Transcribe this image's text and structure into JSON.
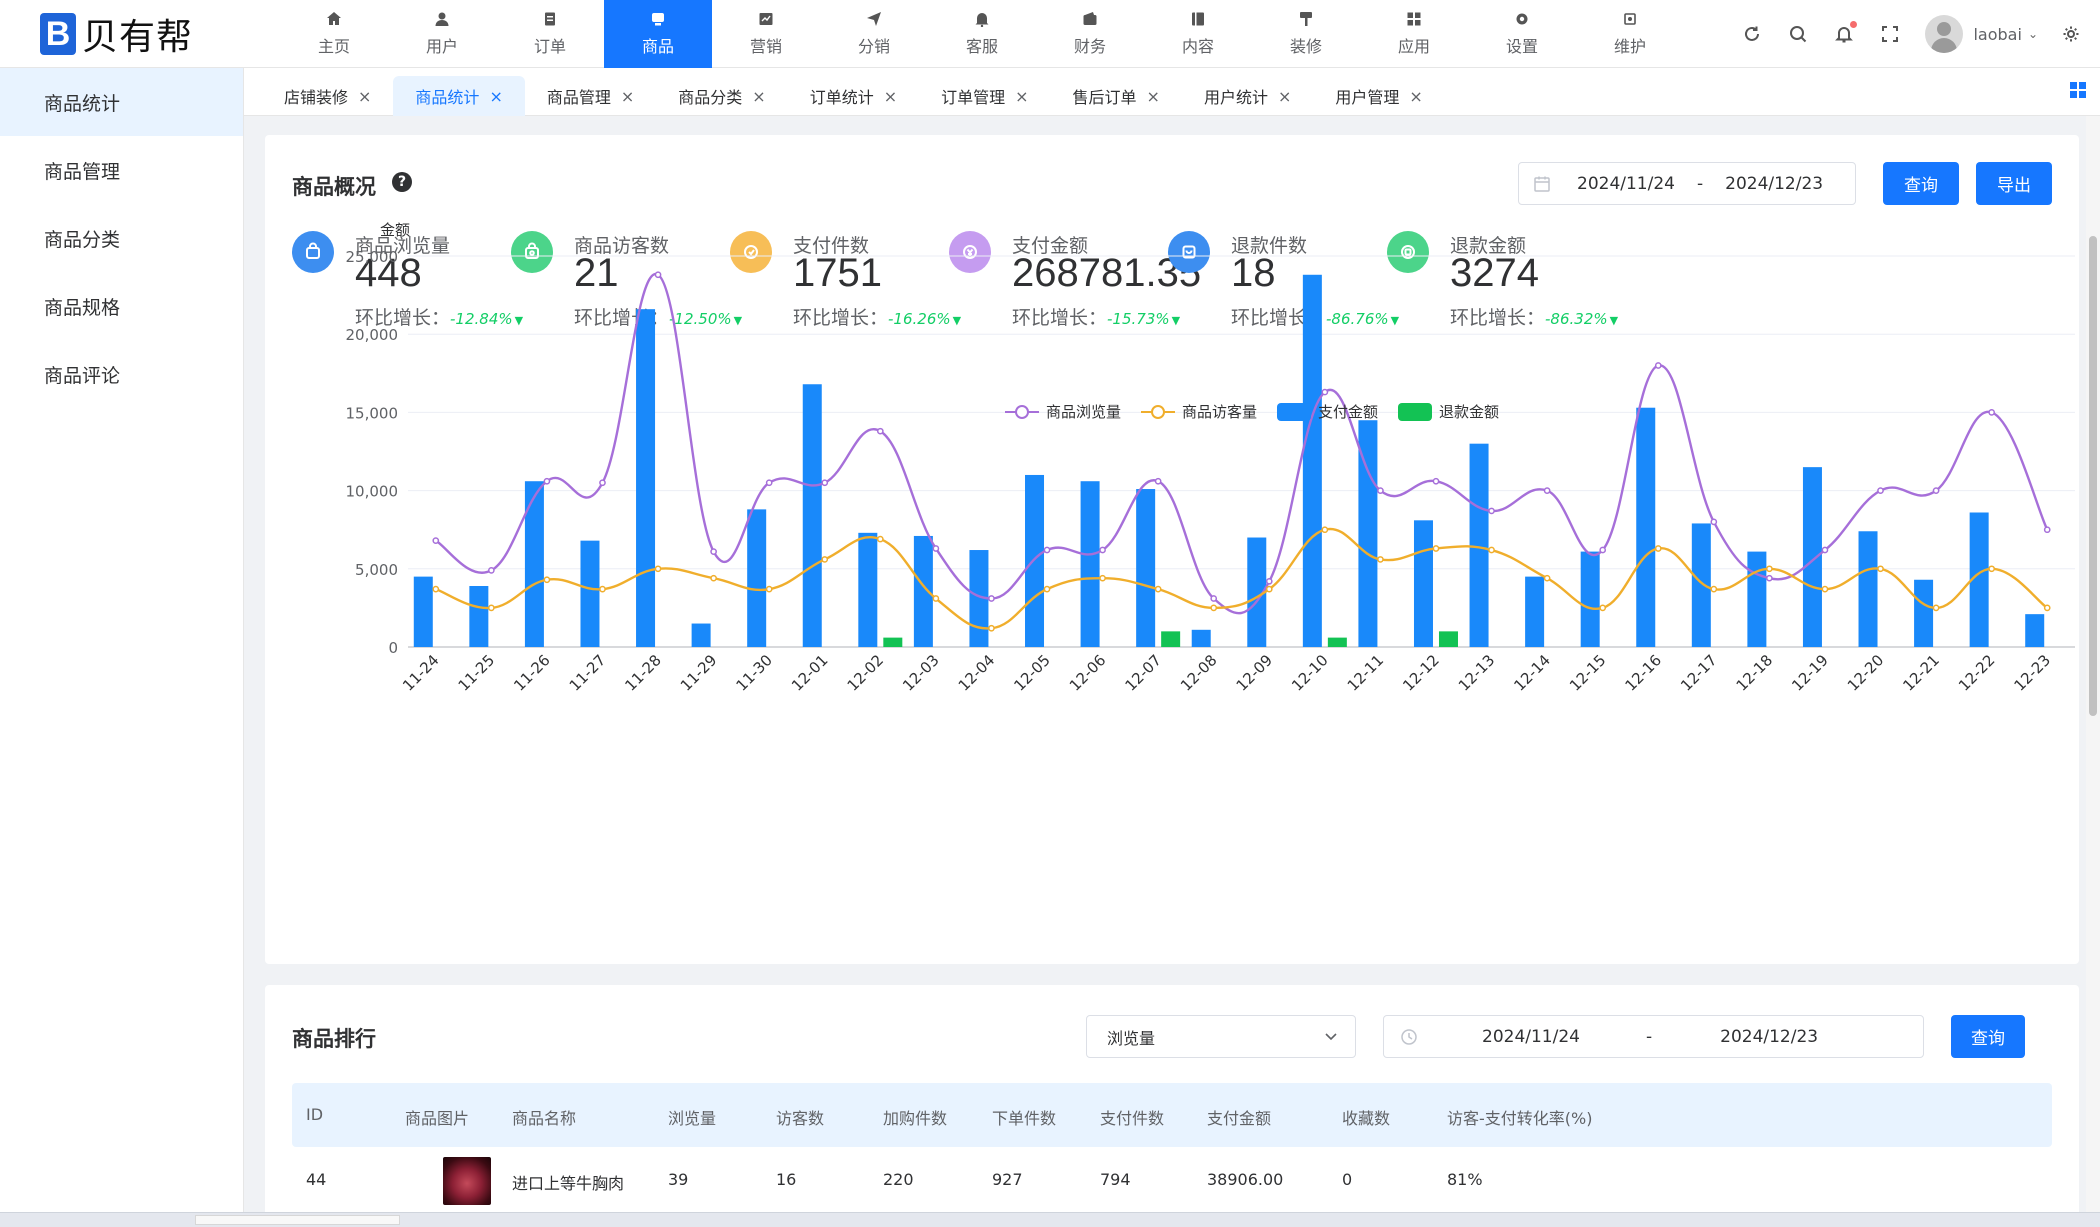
{
  "logo": {
    "mark": "B",
    "text": "贝有帮"
  },
  "topnav": [
    {
      "label": "主页",
      "icon": "home-icon"
    },
    {
      "label": "用户",
      "icon": "user-icon"
    },
    {
      "label": "订单",
      "icon": "order-icon"
    },
    {
      "label": "商品",
      "icon": "goods-icon",
      "active": true
    },
    {
      "label": "营销",
      "icon": "marketing-icon"
    },
    {
      "label": "分销",
      "icon": "distribution-icon"
    },
    {
      "label": "客服",
      "icon": "service-bell-icon"
    },
    {
      "label": "财务",
      "icon": "wallet-icon"
    },
    {
      "label": "内容",
      "icon": "content-icon"
    },
    {
      "label": "装修",
      "icon": "decoration-icon"
    },
    {
      "label": "应用",
      "icon": "apps-icon"
    },
    {
      "label": "设置",
      "icon": "settings-icon"
    },
    {
      "label": "维护",
      "icon": "maintenance-icon"
    }
  ],
  "user": {
    "name": "laobai"
  },
  "sidebar": [
    {
      "label": "商品统计",
      "active": true
    },
    {
      "label": "商品管理"
    },
    {
      "label": "商品分类"
    },
    {
      "label": "商品规格"
    },
    {
      "label": "商品评论"
    }
  ],
  "tabs": [
    {
      "label": "店铺装修"
    },
    {
      "label": "商品统计",
      "active": true
    },
    {
      "label": "商品管理"
    },
    {
      "label": "商品分类"
    },
    {
      "label": "订单统计"
    },
    {
      "label": "订单管理"
    },
    {
      "label": "售后订单"
    },
    {
      "label": "用户统计"
    },
    {
      "label": "用户管理"
    }
  ],
  "overview": {
    "title": "商品概况",
    "date_start": "2024/11/24",
    "date_sep": "-",
    "date_end": "2024/12/23",
    "query_label": "查询",
    "export_label": "导出",
    "growth_label": "环比增长：",
    "stats": [
      {
        "label": "商品浏览量",
        "value": "448",
        "growth": "-12.84%",
        "color": "#3d8ef0",
        "icon": "bag-icon"
      },
      {
        "label": "商品访客数",
        "value": "21",
        "growth": "-12.50%",
        "color": "#4cd48a",
        "icon": "visitor-bag-icon"
      },
      {
        "label": "支付件数",
        "value": "1751",
        "growth": "-16.26%",
        "color": "#f7be57",
        "icon": "payment-icon"
      },
      {
        "label": "支付金额",
        "value": "268781.35",
        "growth": "-15.73%",
        "color": "#c59cf0",
        "icon": "money-icon"
      },
      {
        "label": "退款件数",
        "value": "18",
        "growth": "-86.76%",
        "color": "#3d8ef0",
        "icon": "refund-icon"
      },
      {
        "label": "退款金额",
        "value": "3274",
        "growth": "-86.32%",
        "color": "#4cd48a",
        "icon": "refund-money-icon"
      }
    ]
  },
  "chart_data": {
    "type": "bar",
    "ylabel": "金额",
    "ylim": [
      0,
      25000
    ],
    "yticks": [
      "25,000",
      "20,000",
      "15,000",
      "10,000",
      "5,000",
      "0"
    ],
    "grid": true,
    "legend_position": "top",
    "categories": [
      "11-24",
      "11-25",
      "11-26",
      "11-27",
      "11-28",
      "11-29",
      "11-30",
      "12-01",
      "12-02",
      "12-03",
      "12-04",
      "12-05",
      "12-06",
      "12-07",
      "12-08",
      "12-09",
      "12-10",
      "12-11",
      "12-12",
      "12-13",
      "12-14",
      "12-15",
      "12-16",
      "12-17",
      "12-18",
      "12-19",
      "12-20",
      "12-21",
      "12-22",
      "12-23"
    ],
    "series": [
      {
        "name": "商品浏览量",
        "kind": "line",
        "color": "#a66fd9",
        "values": [
          6800,
          4900,
          10600,
          10500,
          23800,
          6100,
          10500,
          10500,
          13800,
          6300,
          3100,
          6200,
          6200,
          10600,
          3100,
          4200,
          16300,
          10000,
          10600,
          8700,
          10000,
          6200,
          18000,
          8000,
          4400,
          6200,
          10000,
          10000,
          15000,
          7500
        ]
      },
      {
        "name": "商品访客量",
        "kind": "line",
        "color": "#f0ae2c",
        "values": [
          3700,
          2500,
          4300,
          3700,
          5000,
          4400,
          3700,
          5600,
          6900,
          3100,
          1200,
          3700,
          4400,
          3700,
          2500,
          3700,
          7500,
          5600,
          6300,
          6200,
          4400,
          2500,
          6300,
          3700,
          5000,
          3700,
          5000,
          2500,
          5000,
          2500
        ]
      },
      {
        "name": "支付金额",
        "kind": "bar",
        "color": "#1989fa",
        "values": [
          4500,
          3900,
          10600,
          6800,
          21600,
          1500,
          8800,
          16800,
          7300,
          7100,
          6200,
          11000,
          10600,
          10100,
          1100,
          7000,
          23800,
          14500,
          8100,
          13000,
          4500,
          6100,
          15300,
          7900,
          6100,
          11500,
          7400,
          4300,
          8600,
          2100
        ]
      },
      {
        "name": "退款金额",
        "kind": "bar",
        "color": "#13c254",
        "values": [
          0,
          0,
          0,
          0,
          0,
          0,
          0,
          0,
          600,
          0,
          0,
          0,
          0,
          1000,
          0,
          0,
          600,
          0,
          1000,
          0,
          0,
          0,
          0,
          0,
          0,
          0,
          0,
          0,
          0,
          0
        ]
      }
    ]
  },
  "ranking": {
    "title": "商品排行",
    "sort_select": "浏览量",
    "date_start": "2024/11/24",
    "date_sep": "-",
    "date_end": "2024/12/23",
    "query_label": "查询",
    "columns": [
      "ID",
      "商品图片",
      "商品名称",
      "浏览量",
      "访客数",
      "加购件数",
      "下单件数",
      "支付件数",
      "支付金额",
      "收藏数",
      "访客-支付转化率(%)"
    ],
    "rows": [
      [
        "44",
        "",
        "进口上等牛胸肉",
        "39",
        "16",
        "220",
        "927",
        "794",
        "38906.00",
        "0",
        "81%"
      ]
    ]
  }
}
